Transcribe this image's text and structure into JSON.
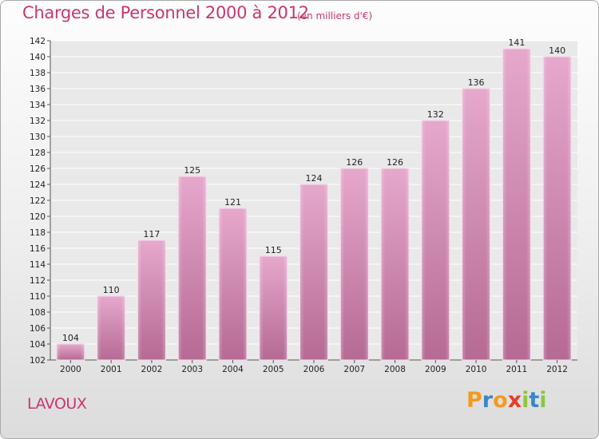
{
  "header": {
    "title": "Charges de Personnel 2000 à 2012",
    "unit_note": "(en milliers d'€)"
  },
  "commune_name": "LAVOUX",
  "logo": {
    "letters": [
      "P",
      "r",
      "o",
      "x",
      "i",
      "t",
      "i"
    ],
    "colors": [
      "#f39a1e",
      "#3a86c8",
      "#f39a1e",
      "#e63c2a",
      "#8dc63f",
      "#3a86c8",
      "#8dc63f"
    ]
  },
  "chart_data": {
    "type": "bar",
    "title": "Charges de Personnel 2000 à 2012",
    "subtitle": "(en milliers d'€)",
    "categories": [
      "2000",
      "2001",
      "2002",
      "2003",
      "2004",
      "2005",
      "2006",
      "2007",
      "2008",
      "2009",
      "2010",
      "2011",
      "2012"
    ],
    "values": [
      104,
      110,
      117,
      125,
      121,
      115,
      124,
      126,
      126,
      132,
      136,
      141,
      140
    ],
    "ylim": [
      102,
      142
    ],
    "yticks": [
      102,
      104,
      106,
      108,
      110,
      112,
      114,
      116,
      118,
      120,
      122,
      124,
      126,
      128,
      130,
      132,
      134,
      136,
      138,
      140,
      142
    ],
    "grid": true,
    "bar_color": "#d98db7",
    "xlabel": "",
    "ylabel": ""
  }
}
